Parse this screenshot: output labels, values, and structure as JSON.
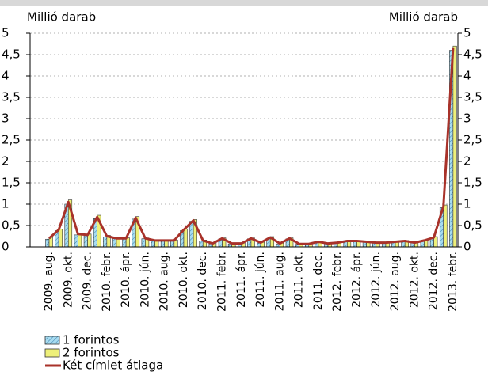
{
  "chart_data": {
    "type": "bar",
    "y_axis_label": "Millió darab",
    "y2_axis_label": "Millió darab",
    "categories": [
      "2009. aug.",
      null,
      "2009. okt.",
      null,
      "2009. dec.",
      null,
      "2010. febr.",
      null,
      "2010. ápr.",
      null,
      "2010. jún.",
      null,
      "2010. aug.",
      null,
      "2010. okt.",
      null,
      "2010. dec.",
      null,
      "2011. febr.",
      null,
      "2011. ápr.",
      null,
      "2011. jún.",
      null,
      "2011. aug.",
      null,
      "2011. okt.",
      null,
      "2011. dec.",
      null,
      "2012. febr.",
      null,
      "2012. ápr.",
      null,
      "2012. jún.",
      null,
      "2012. aug.",
      null,
      "2012. okt.",
      null,
      "2012. dec.",
      null,
      "2013. febr."
    ],
    "series": [
      {
        "name": "1 forintos",
        "type": "bar",
        "color": "#a8dcf0",
        "hatch": true,
        "values": [
          0.18,
          0.38,
          1.0,
          0.28,
          0.26,
          0.66,
          0.23,
          0.19,
          0.19,
          0.65,
          0.19,
          0.14,
          0.14,
          0.14,
          0.38,
          0.6,
          0.14,
          0.07,
          0.19,
          0.07,
          0.07,
          0.19,
          0.09,
          0.2,
          0.07,
          0.19,
          0.06,
          0.06,
          0.11,
          0.07,
          0.09,
          0.13,
          0.13,
          0.11,
          0.09,
          0.09,
          0.11,
          0.13,
          0.09,
          0.14,
          0.2,
          0.92,
          4.6
        ]
      },
      {
        "name": "2 forintos",
        "type": "bar",
        "color": "#eef07a",
        "hatch": false,
        "values": [
          0.22,
          0.42,
          1.1,
          0.32,
          0.3,
          0.74,
          0.27,
          0.21,
          0.21,
          0.71,
          0.21,
          0.16,
          0.16,
          0.16,
          0.42,
          0.64,
          0.16,
          0.09,
          0.21,
          0.09,
          0.09,
          0.21,
          0.11,
          0.24,
          0.09,
          0.21,
          0.08,
          0.08,
          0.13,
          0.09,
          0.11,
          0.15,
          0.15,
          0.13,
          0.11,
          0.11,
          0.13,
          0.15,
          0.11,
          0.16,
          0.24,
          0.98,
          4.7
        ]
      },
      {
        "name": "Két címlet átlaga",
        "type": "line",
        "color": "#a8322a",
        "values": [
          0.2,
          0.4,
          1.05,
          0.3,
          0.28,
          0.7,
          0.25,
          0.2,
          0.2,
          0.68,
          0.2,
          0.15,
          0.15,
          0.15,
          0.4,
          0.62,
          0.15,
          0.08,
          0.2,
          0.08,
          0.08,
          0.2,
          0.1,
          0.22,
          0.08,
          0.2,
          0.07,
          0.07,
          0.12,
          0.08,
          0.1,
          0.14,
          0.14,
          0.12,
          0.1,
          0.1,
          0.12,
          0.14,
          0.1,
          0.15,
          0.22,
          0.95,
          4.65
        ]
      }
    ],
    "ylim": [
      0,
      5
    ],
    "yticks": [
      0,
      {
        "value": 0.5,
        "label": "0,5"
      },
      1,
      {
        "value": 1.5,
        "label": "1,5"
      },
      2,
      {
        "value": 2.5,
        "label": "2,5"
      },
      3,
      {
        "value": 3.5,
        "label": "3,5"
      },
      4,
      {
        "value": 4.5,
        "label": "4,5"
      },
      5
    ],
    "y2lim": [
      0,
      5
    ],
    "y2ticks": [
      0,
      {
        "value": 0.5,
        "label": "0,5"
      },
      1,
      {
        "value": 1.5,
        "label": "1,5"
      },
      2,
      {
        "value": 2.5,
        "label": "2,5"
      },
      3,
      {
        "value": 3.5,
        "label": "3,5"
      },
      4,
      {
        "value": 4.5,
        "label": "4,5"
      },
      5
    ],
    "grid": true,
    "legend": "bottom-left"
  }
}
